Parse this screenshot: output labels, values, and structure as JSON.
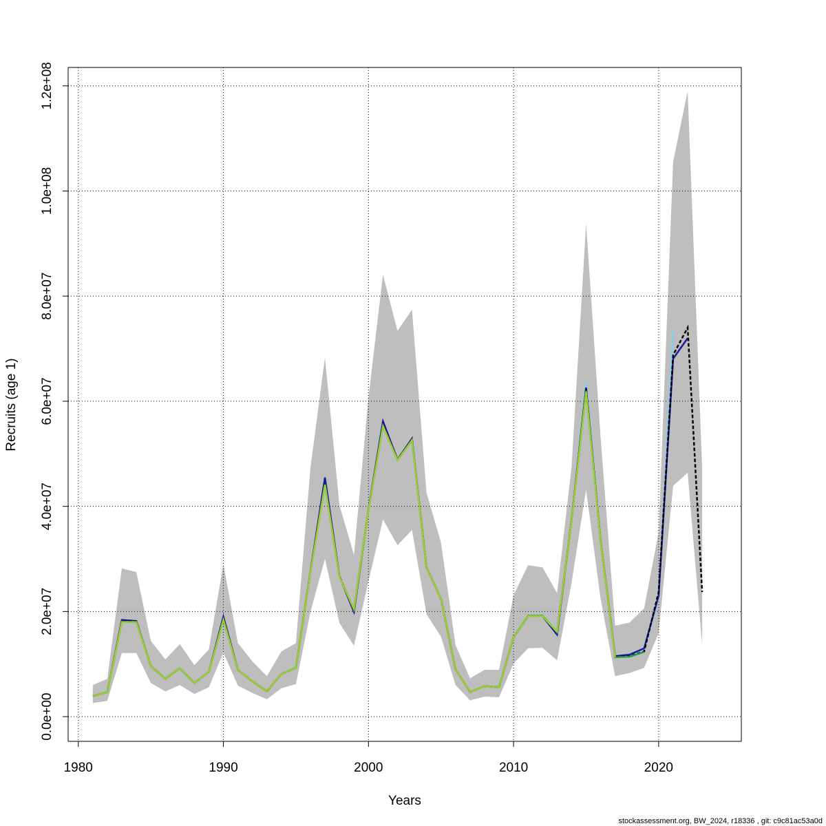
{
  "chart_data": {
    "type": "line",
    "xlabel": "Years",
    "ylabel": "Recruits (age 1)",
    "footer": "stockassessment.org, BW_2024, r18336 , git: c9c81ac53a0d",
    "xlim": [
      1979.3,
      2025.7
    ],
    "ylim": [
      -4700000.0,
      123500000.0
    ],
    "xticks": [
      1980,
      1990,
      2000,
      2010,
      2020
    ],
    "yticks": [
      {
        "value": 0,
        "label": "0.0e+00"
      },
      {
        "value": 20000000.0,
        "label": "2.0e+07"
      },
      {
        "value": 40000000.0,
        "label": "4.0e+07"
      },
      {
        "value": 60000000.0,
        "label": "6.0e+07"
      },
      {
        "value": 80000000.0,
        "label": "8.0e+07"
      },
      {
        "value": 100000000.0,
        "label": "1.0e+08"
      },
      {
        "value": 120000000.0,
        "label": "1.2e+08"
      }
    ],
    "grid": true,
    "x": [
      1981,
      1982,
      1983,
      1984,
      1985,
      1986,
      1987,
      1988,
      1989,
      1990,
      1991,
      1992,
      1993,
      1994,
      1995,
      1996,
      1997,
      1998,
      1999,
      2000,
      2001,
      2002,
      2003,
      2004,
      2005,
      2006,
      2007,
      2008,
      2009,
      2010,
      2011,
      2012,
      2013,
      2014,
      2015,
      2016,
      2017,
      2018,
      2019,
      2020,
      2021,
      2022,
      2023
    ],
    "band": {
      "color": "#bebebe",
      "upper": [
        6000000.0,
        7200000.0,
        28200000.0,
        27500000.0,
        14400000.0,
        10900000.0,
        13800000.0,
        9800000.0,
        12800000.0,
        29000000.0,
        14000000.0,
        10500000.0,
        7700000.0,
        12400000.0,
        14000000.0,
        47300000.0,
        68300000.0,
        40200000.0,
        30800000.0,
        60700000.0,
        84100000.0,
        73400000.0,
        77400000.0,
        42600000.0,
        33100000.0,
        13600000.0,
        7300000.0,
        8900000.0,
        8900000.0,
        23100000.0,
        28800000.0,
        28400000.0,
        23500000.0,
        47600000.0,
        93800000.0,
        53100000.0,
        17300000.0,
        17900000.0,
        20600000.0,
        35100000.0,
        105600000.0,
        119000000.0,
        47300000.0
      ],
      "lower": [
        2600000.0,
        3000000.0,
        12100000.0,
        12100000.0,
        6400000.0,
        4800000.0,
        6000000.0,
        4300000.0,
        5600000.0,
        12200000.0,
        5900000.0,
        4500000.0,
        3300000.0,
        5400000.0,
        6200000.0,
        19900000.0,
        30000000.0,
        17800000.0,
        13500000.0,
        25800000.0,
        37500000.0,
        32600000.0,
        35500000.0,
        19500000.0,
        15200000.0,
        6000000.0,
        3100000.0,
        3800000.0,
        3700000.0,
        10100000.0,
        13000000.0,
        13100000.0,
        10700000.0,
        25500000.0,
        43200000.0,
        22400000.0,
        7700000.0,
        8300000.0,
        9300000.0,
        15900000.0,
        43900000.0,
        46400000.0,
        13600000.0
      ]
    },
    "series": [
      {
        "color": "#87ceeb",
        "values": [
          3900000.0,
          4700000.0,
          18100000.0,
          18100000.0,
          9600000.0,
          7200000.0,
          9200000.0,
          6400000.0,
          8500000.0,
          18500000.0,
          8900000.0,
          6700000.0,
          4800000.0,
          8100000.0,
          9300000.0,
          27600000.0,
          44400000.0,
          26700000.0,
          20300000.0,
          39400000.0,
          55500000.0,
          48900000.0,
          52700000.0,
          28400000.0,
          22400000.0,
          9000000.0,
          4700000.0,
          5800000.0,
          5600000.0,
          15100000.0,
          19100000.0,
          19100000.0,
          16100000.0,
          37500000.0,
          63500000.0,
          33500000.0,
          11400000.0,
          11600000.0,
          12500000.0,
          22500000.0,
          73500000.0,
          null,
          null
        ]
      },
      {
        "color": "#1a1a9c",
        "values": [
          3900000.0,
          4700000.0,
          18400000.0,
          18200000.0,
          9600000.0,
          7200000.0,
          9200000.0,
          6400000.0,
          8500000.0,
          19000000.0,
          8900000.0,
          6700000.0,
          4800000.0,
          8100000.0,
          9300000.0,
          27600000.0,
          45500000.0,
          26700000.0,
          19900000.0,
          39400000.0,
          56200000.0,
          48900000.0,
          52900000.0,
          28400000.0,
          22400000.0,
          9000000.0,
          4700000.0,
          5800000.0,
          5600000.0,
          15100000.0,
          19100000.0,
          19100000.0,
          15600000.0,
          37500000.0,
          62600000.0,
          33500000.0,
          11500000.0,
          11800000.0,
          13000000.0,
          23000000.0,
          68100000.0,
          72000000.0,
          null
        ]
      },
      {
        "color": "#000000",
        "dashed": true,
        "values": [
          3900000.0,
          4700000.0,
          18100000.0,
          18100000.0,
          9600000.0,
          7200000.0,
          9200000.0,
          6400000.0,
          8500000.0,
          18500000.0,
          8900000.0,
          6700000.0,
          4800000.0,
          8100000.0,
          9300000.0,
          27600000.0,
          44400000.0,
          26700000.0,
          20300000.0,
          39400000.0,
          55500000.0,
          48900000.0,
          52700000.0,
          28400000.0,
          22400000.0,
          9000000.0,
          4700000.0,
          5800000.0,
          5600000.0,
          15100000.0,
          19100000.0,
          19100000.0,
          16100000.0,
          37500000.0,
          62400000.0,
          33500000.0,
          11400000.0,
          11500000.0,
          12400000.0,
          23700000.0,
          68800000.0,
          74000000.0,
          23700000.0
        ]
      },
      {
        "color": "#2e9b4a",
        "values": [
          3900000.0,
          4700000.0,
          18000000.0,
          18000000.0,
          9600000.0,
          7200000.0,
          9200000.0,
          6400000.0,
          8500000.0,
          18400000.0,
          8900000.0,
          6700000.0,
          4800000.0,
          8100000.0,
          9300000.0,
          27500000.0,
          44200000.0,
          26600000.0,
          20400000.0,
          39300000.0,
          55300000.0,
          48800000.0,
          52600000.0,
          28400000.0,
          22400000.0,
          9000000.0,
          4700000.0,
          5800000.0,
          5600000.0,
          15100000.0,
          19200000.0,
          19200000.0,
          16100000.0,
          37400000.0,
          62000000.0,
          33400000.0,
          11300000.0,
          11400000.0,
          12300000.0,
          null,
          null,
          null,
          null
        ]
      },
      {
        "color": "#9acd32",
        "values": [
          3900000.0,
          4700000.0,
          18000000.0,
          18000000.0,
          9600000.0,
          7200000.0,
          9200000.0,
          6400000.0,
          8500000.0,
          18400000.0,
          8900000.0,
          6700000.0,
          4800000.0,
          8100000.0,
          9300000.0,
          27500000.0,
          44100000.0,
          26600000.0,
          20400000.0,
          39300000.0,
          55300000.0,
          48800000.0,
          52600000.0,
          28400000.0,
          22400000.0,
          9000000.0,
          4700000.0,
          5800000.0,
          5600000.0,
          15100000.0,
          19100000.0,
          19100000.0,
          16100000.0,
          37400000.0,
          61800000.0,
          33400000.0,
          11300000.0,
          null,
          null,
          null,
          null,
          null,
          null
        ]
      }
    ]
  }
}
